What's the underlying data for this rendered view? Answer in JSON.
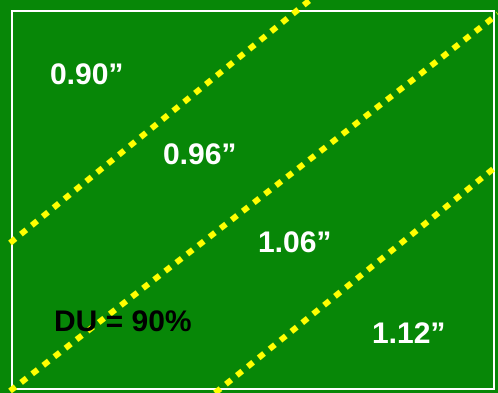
{
  "colors": {
    "field": "#078707",
    "border": "#ffffff",
    "line": "#ffff00",
    "label": "#ffffff",
    "du_text": "#000000"
  },
  "zones": [
    {
      "label": "0.90”"
    },
    {
      "label": "0.96”"
    },
    {
      "label": "1.06”"
    },
    {
      "label": "1.12”"
    }
  ],
  "du_label": "DU = 90%"
}
